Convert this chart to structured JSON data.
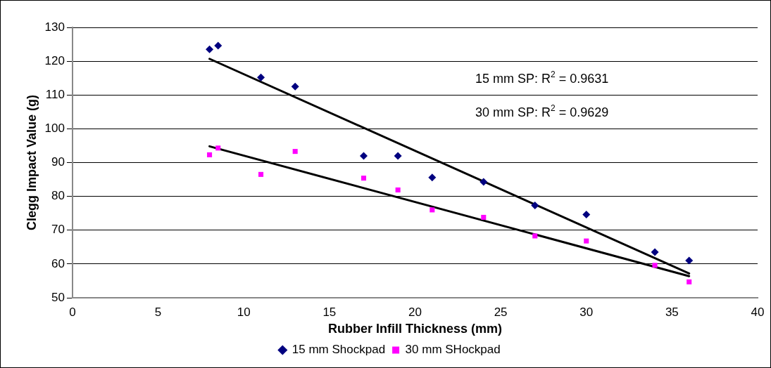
{
  "chart_data": {
    "type": "scatter",
    "xlabel": "Rubber Infill Thickness (mm)",
    "ylabel": "Clegg Impact Value (g)",
    "xlim": [
      0,
      40
    ],
    "xticks": [
      0,
      5,
      10,
      15,
      20,
      25,
      30,
      35,
      40
    ],
    "ylim": [
      50,
      130
    ],
    "yticks": [
      50,
      60,
      70,
      80,
      90,
      100,
      110,
      120,
      130
    ],
    "grid": "y",
    "legend": "bottom",
    "annotations": [
      "15 mm SP: R$^{2}$ = 0.9631",
      "30 mm SP: R$^{2}$ = 0.9629"
    ],
    "series": [
      {
        "name": "15 mm Shockpad",
        "color": "#000080",
        "marker": "diamond",
        "x": [
          8,
          8.5,
          11,
          13,
          17,
          19,
          21,
          24,
          27,
          30,
          34,
          36
        ],
        "values": [
          123.5,
          124.6,
          115.2,
          112.5,
          92,
          92,
          85.6,
          84.3,
          77.3,
          74.6,
          63.5,
          61
        ]
      },
      {
        "name": "30 mm SHockpad",
        "color": "#ff00ff",
        "marker": "square",
        "x": [
          8,
          8.5,
          11,
          13,
          17,
          19,
          21,
          24,
          27,
          30,
          34,
          36
        ],
        "values": [
          92.3,
          94.3,
          86.5,
          93.3,
          85.4,
          81.9,
          76,
          73.8,
          68.3,
          66.8,
          59.6,
          54.7
        ]
      },
      {
        "type": "line",
        "color": "#000000",
        "marker": "none",
        "x": [
          8,
          36
        ],
        "values": [
          120.7,
          57.2
        ]
      },
      {
        "type": "line",
        "color": "#000000",
        "marker": "none",
        "x": [
          8,
          36
        ],
        "values": [
          94.8,
          56.4
        ]
      }
    ]
  }
}
